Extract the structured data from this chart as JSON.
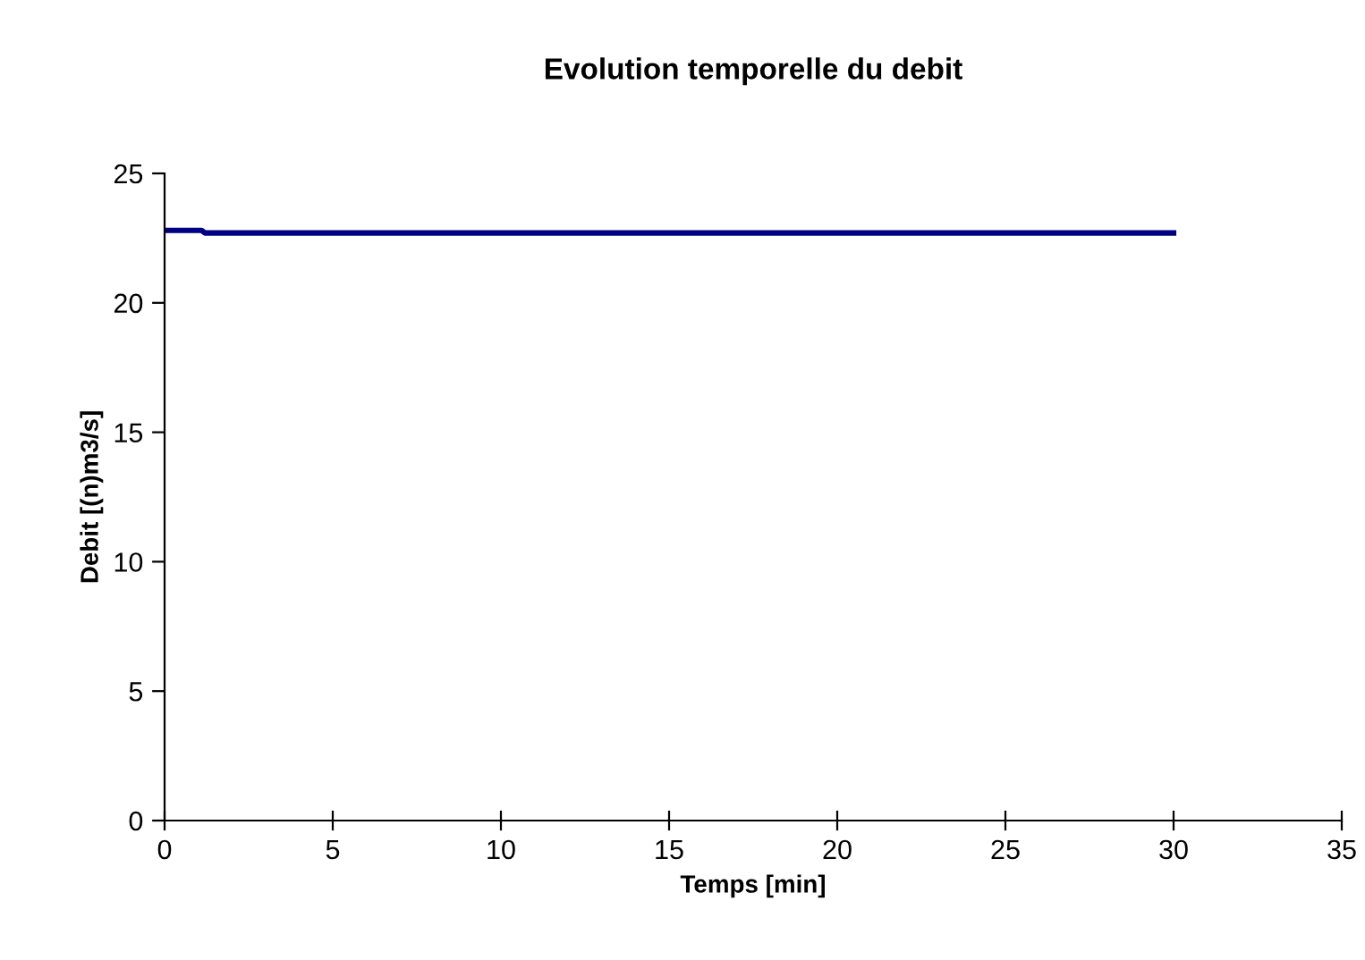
{
  "chart_data": {
    "type": "line",
    "title": "Evolution temporelle du debit",
    "xlabel": "Temps [min]",
    "ylabel": "Debit [(n)m3/s]",
    "series": [
      {
        "color": "#000080",
        "x": [
          0,
          1.1,
          1.2,
          30
        ],
        "values": [
          22.8,
          22.8,
          22.7,
          22.7
        ]
      }
    ],
    "xlim": [
      0,
      35
    ],
    "xticks": [
      0,
      5,
      10,
      15,
      20,
      25,
      30,
      35
    ],
    "ylim": [
      0,
      25
    ],
    "yticks": [
      0,
      5,
      10,
      15,
      20,
      25
    ],
    "grid": false,
    "legend": false,
    "marker": "none",
    "line_style": "solid"
  }
}
